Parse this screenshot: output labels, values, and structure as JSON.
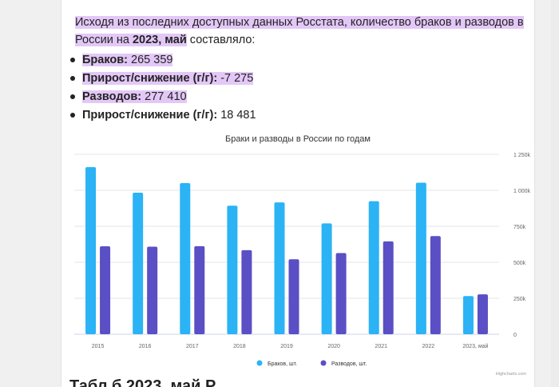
{
  "intro": {
    "part1": "Исходя из последних доступных данных Росстата, количество браков и разводов в России на",
    "date_bold": "2023, май",
    "part2": " составляло:"
  },
  "stats": [
    {
      "label": "Браков:",
      "value": " 265 359",
      "highlight": true
    },
    {
      "label": "Прирост/снижение (г/г):",
      "value": " -7 275",
      "highlight": true
    },
    {
      "label": "Разводов:",
      "value": " 277 410",
      "highlight": true
    },
    {
      "label": "Прирост/снижение (г/г):",
      "value": " 18 481",
      "highlight": false
    }
  ],
  "chart_data": {
    "type": "bar",
    "title": "Браки и разводы в России по годам",
    "categories": [
      "2015",
      "2016",
      "2017",
      "2018",
      "2019",
      "2020",
      "2021",
      "2022",
      "2023, май"
    ],
    "series": [
      {
        "name": "Браков, шт.",
        "color": "#2bb3f5",
        "values": [
          1161000,
          983000,
          1050000,
          893000,
          916000,
          770000,
          924000,
          1053000,
          265359
        ]
      },
      {
        "name": "Разводов, шт.",
        "color": "#5a4fc4",
        "values": [
          611000,
          608000,
          612000,
          584000,
          521000,
          564000,
          645000,
          682000,
          277410
        ]
      }
    ],
    "ylim": [
      0,
      1250000
    ],
    "ytick_labels": [
      "0",
      "250k",
      "500k",
      "750k",
      "1 000k",
      "1 250k"
    ],
    "legend_position": "bottom",
    "credits": "Highcharts.com",
    "grid": true
  },
  "bottom_text": "Табл         б                           2023, май    Р"
}
